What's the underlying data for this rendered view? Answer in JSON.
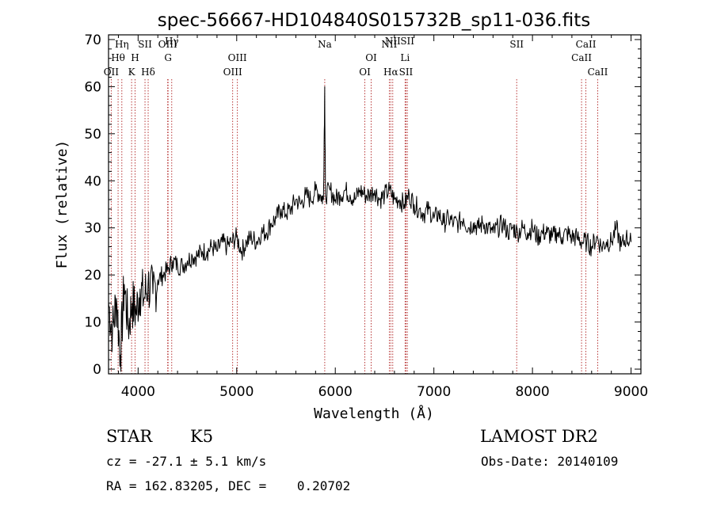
{
  "chart_data": {
    "type": "line",
    "title": "spec-56667-HD104840S015732B_sp11-036.fits",
    "xlabel": "Wavelength (Å)",
    "ylabel": "Flux (relative)",
    "xlim": [
      3700,
      9100
    ],
    "ylim": [
      -1,
      71
    ],
    "xticks": [
      4000,
      5000,
      6000,
      7000,
      8000,
      9000
    ],
    "yticks": [
      0,
      10,
      20,
      30,
      40,
      50,
      60,
      70
    ],
    "grid": false,
    "legend": "none",
    "series": [
      {
        "color": "#000000",
        "x": [
          3700,
          3740,
          3780,
          3820,
          3860,
          3900,
          3940,
          3980,
          4020,
          4060,
          4100,
          4150,
          4200,
          4250,
          4300,
          4350,
          4400,
          4450,
          4500,
          4550,
          4600,
          4650,
          4700,
          4750,
          4800,
          4850,
          4900,
          4950,
          5000,
          5050,
          5100,
          5150,
          5200,
          5250,
          5300,
          5350,
          5400,
          5450,
          5500,
          5550,
          5600,
          5650,
          5700,
          5750,
          5800,
          5850,
          5880,
          5893,
          5900,
          5950,
          6000,
          6050,
          6100,
          6150,
          6200,
          6250,
          6300,
          6350,
          6400,
          6450,
          6500,
          6550,
          6600,
          6650,
          6700,
          6750,
          6800,
          6850,
          6900,
          6950,
          7000,
          7050,
          7100,
          7150,
          7200,
          7250,
          7300,
          7350,
          7400,
          7450,
          7500,
          7550,
          7600,
          7650,
          7700,
          7750,
          7800,
          7850,
          7900,
          7950,
          8000,
          8050,
          8100,
          8150,
          8200,
          8250,
          8300,
          8350,
          8400,
          8450,
          8500,
          8550,
          8600,
          8650,
          8700,
          8750,
          8800,
          8850,
          8900,
          8950,
          9000
        ],
        "y": [
          14,
          8,
          15,
          3,
          18,
          9,
          14,
          12,
          17,
          15,
          18,
          16,
          19,
          20,
          21,
          23,
          22,
          22,
          23,
          24,
          24,
          25,
          25,
          26,
          25,
          27,
          26,
          27,
          28,
          25,
          27,
          28,
          27,
          29,
          29,
          31,
          32,
          34,
          33,
          34,
          36,
          35,
          37,
          36,
          38,
          37,
          36,
          60,
          37,
          38,
          36,
          37,
          38,
          37,
          36,
          38,
          37,
          37,
          38,
          36,
          37,
          38,
          36,
          36,
          35,
          37,
          35,
          34,
          33,
          34,
          32,
          33,
          31,
          32,
          31,
          31,
          32,
          30,
          31,
          30,
          31,
          30,
          29,
          30,
          31,
          29,
          30,
          29,
          30,
          29,
          30,
          28,
          29,
          29,
          28,
          29,
          28,
          29,
          28,
          28,
          27,
          27,
          26,
          28,
          26,
          27,
          27,
          30,
          26,
          28,
          27
        ]
      }
    ],
    "spectral_lines": [
      {
        "label": "OII",
        "x": 3727,
        "row": 3
      },
      {
        "label": "Hθ",
        "x": 3797,
        "row": 2
      },
      {
        "label": "Hη",
        "x": 3835,
        "row": 1
      },
      {
        "label": "K",
        "x": 3934,
        "row": 3
      },
      {
        "label": "H",
        "x": 3969,
        "row": 2
      },
      {
        "label": "SII",
        "x": 4070,
        "row": 1
      },
      {
        "label": "Hδ",
        "x": 4102,
        "row": 3
      },
      {
        "label": "OIII",
        "x": 4300,
        "row": 1
      },
      {
        "label": "G",
        "x": 4304,
        "row": 2
      },
      {
        "label": "Hγ",
        "x": 4341,
        "row": 0
      },
      {
        "label": "OIII",
        "x": 4959,
        "row": 3
      },
      {
        "label": "OIII",
        "x": 5007,
        "row": 2
      },
      {
        "label": "Na",
        "x": 5893,
        "row": 1
      },
      {
        "label": "OI",
        "x": 6300,
        "row": 3
      },
      {
        "label": "OI",
        "x": 6364,
        "row": 2
      },
      {
        "label": "NII",
        "x": 6548,
        "row": 1
      },
      {
        "label": "Hα",
        "x": 6563,
        "row": 3
      },
      {
        "label": "NII",
        "x": 6583,
        "row": 0
      },
      {
        "label": "Li",
        "x": 6708,
        "row": 2
      },
      {
        "label": "SII",
        "x": 6717,
        "row": 3
      },
      {
        "label": "SII",
        "x": 6731,
        "row": 0
      },
      {
        "label": "SII",
        "x": 7840,
        "row": 1
      },
      {
        "label": "CaII",
        "x": 8498,
        "row": 2
      },
      {
        "label": "CaII",
        "x": 8542,
        "row": 1
      },
      {
        "label": "CaII",
        "x": 8662,
        "row": 3
      }
    ]
  },
  "info": {
    "object_class": "STAR",
    "subclass": "K5",
    "redshift": "cz = -27.1 ± 5.1 km/s",
    "coords": "RA = 162.83205, DEC =    0.20702",
    "survey": "LAMOST DR2",
    "obs_date": "Obs-Date: 20140109"
  }
}
